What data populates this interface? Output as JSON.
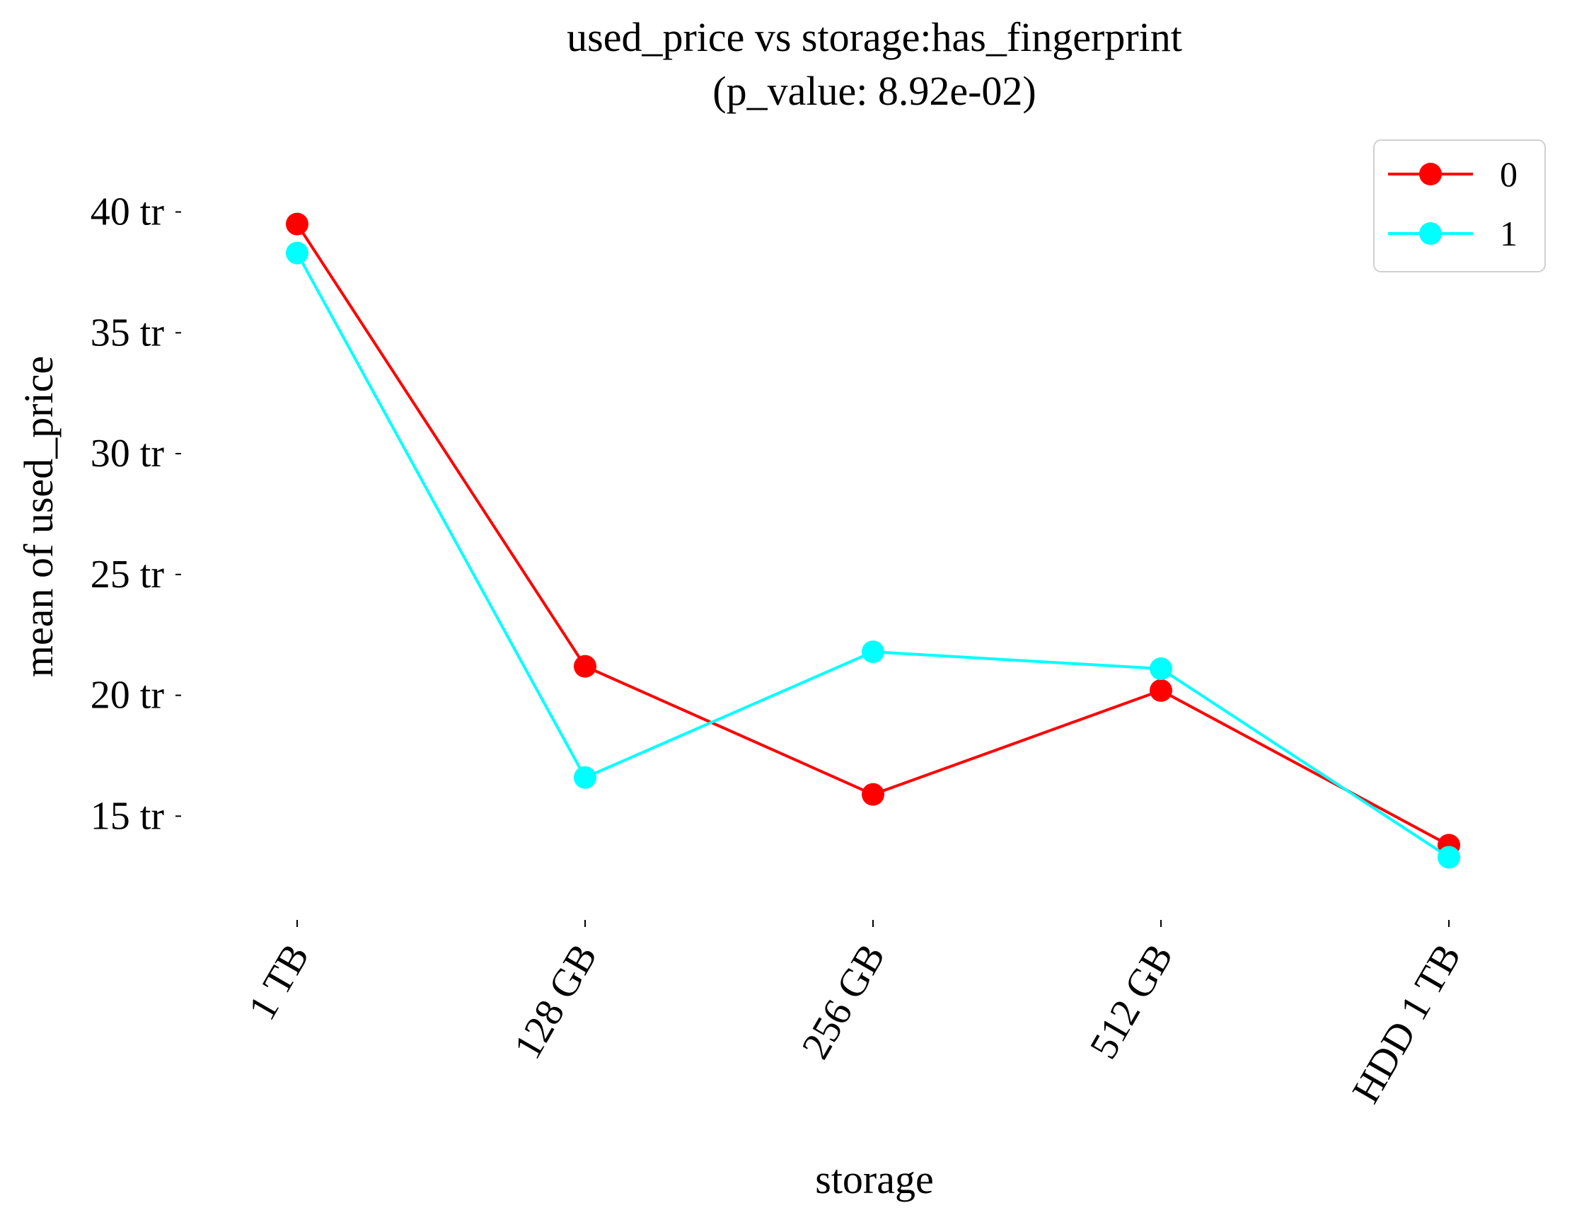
{
  "chart_data": {
    "type": "line",
    "title": "used_price vs storage:has_fingerprint",
    "subtitle": "(p_value: 8.92e-02)",
    "xlabel": "storage",
    "ylabel": "mean of used_price",
    "categories": [
      "1 TB",
      "128 GB",
      "256 GB",
      "512 GB",
      "HDD 1 TB"
    ],
    "yticks": [
      15,
      20,
      25,
      30,
      35,
      40
    ],
    "ytick_labels": [
      "15 tr",
      "20 tr",
      "25 tr",
      "30 tr",
      "35 tr",
      "40 tr"
    ],
    "ylim": [
      11,
      43.5
    ],
    "grid": false,
    "legend_position": "top-right",
    "series": [
      {
        "name": "0",
        "color": "#ff0000",
        "values": [
          39.5,
          21.2,
          15.9,
          20.2,
          13.8
        ]
      },
      {
        "name": "1",
        "color": "#00ffff",
        "values": [
          38.3,
          16.6,
          21.8,
          21.1,
          13.3
        ]
      }
    ]
  }
}
